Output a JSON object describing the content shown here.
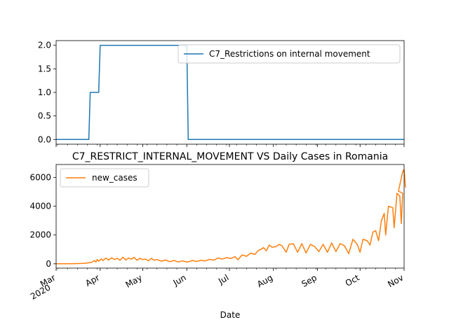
{
  "chart_data": [
    {
      "type": "line",
      "title": "",
      "xlabel": "",
      "ylabel": "",
      "ylim": [
        -0.1,
        2.1
      ],
      "yticks": [
        0.0,
        0.5,
        1.0,
        1.5,
        2.0
      ],
      "ytick_labels": [
        "0.0",
        "0.5",
        "1.0",
        "1.5",
        "2.0"
      ],
      "xlim": [
        "2020-03-01",
        "2020-11-01"
      ],
      "legend_position": "upper-right",
      "series": [
        {
          "name": "C7_Restrictions on internal movement",
          "color": "#1f77b4",
          "points": [
            [
              "2020-03-01",
              0
            ],
            [
              "2020-03-24",
              0
            ],
            [
              "2020-03-25",
              1
            ],
            [
              "2020-03-31",
              1
            ],
            [
              "2020-04-01",
              2
            ],
            [
              "2020-06-01",
              2
            ],
            [
              "2020-06-02",
              0
            ],
            [
              "2020-11-01",
              0
            ]
          ]
        }
      ]
    },
    {
      "type": "line",
      "title": "C7_RESTRICT_INTERNAL_MOVEMENT VS Daily Cases in Romania",
      "xlabel": "Date",
      "ylabel": "",
      "ylim": [
        -300,
        6900
      ],
      "yticks": [
        0,
        2000,
        4000,
        6000
      ],
      "ytick_labels": [
        "0",
        "2000",
        "4000",
        "6000"
      ],
      "xlim": [
        "2020-03-01",
        "2020-11-01"
      ],
      "legend_position": "upper-left",
      "x_tick_labels": [
        {
          "date": "2020-03-01",
          "month": "Mar",
          "year": "2020"
        },
        {
          "date": "2020-04-01",
          "month": "Apr"
        },
        {
          "date": "2020-05-01",
          "month": "May"
        },
        {
          "date": "2020-06-01",
          "month": "Jun"
        },
        {
          "date": "2020-07-01",
          "month": "Jul"
        },
        {
          "date": "2020-08-01",
          "month": "Aug"
        },
        {
          "date": "2020-09-01",
          "month": "Sep"
        },
        {
          "date": "2020-10-01",
          "month": "Oct"
        },
        {
          "date": "2020-11-01",
          "month": "Nov"
        }
      ],
      "series": [
        {
          "name": "new_cases",
          "color": "#ff7f0e",
          "points": [
            [
              "2020-03-01",
              0
            ],
            [
              "2020-03-10",
              5
            ],
            [
              "2020-03-16",
              15
            ],
            [
              "2020-03-20",
              30
            ],
            [
              "2020-03-23",
              60
            ],
            [
              "2020-03-26",
              100
            ],
            [
              "2020-03-28",
              230
            ],
            [
              "2020-03-29",
              120
            ],
            [
              "2020-03-30",
              300
            ],
            [
              "2020-03-31",
              180
            ],
            [
              "2020-04-02",
              340
            ],
            [
              "2020-04-03",
              220
            ],
            [
              "2020-04-05",
              400
            ],
            [
              "2020-04-07",
              260
            ],
            [
              "2020-04-09",
              420
            ],
            [
              "2020-04-11",
              300
            ],
            [
              "2020-04-13",
              380
            ],
            [
              "2020-04-15",
              240
            ],
            [
              "2020-04-17",
              460
            ],
            [
              "2020-04-19",
              260
            ],
            [
              "2020-04-21",
              400
            ],
            [
              "2020-04-23",
              320
            ],
            [
              "2020-04-25",
              450
            ],
            [
              "2020-04-27",
              240
            ],
            [
              "2020-04-29",
              380
            ],
            [
              "2020-05-01",
              300
            ],
            [
              "2020-05-03",
              330
            ],
            [
              "2020-05-05",
              200
            ],
            [
              "2020-05-07",
              380
            ],
            [
              "2020-05-09",
              250
            ],
            [
              "2020-05-11",
              300
            ],
            [
              "2020-05-14",
              180
            ],
            [
              "2020-05-17",
              260
            ],
            [
              "2020-05-20",
              150
            ],
            [
              "2020-05-23",
              230
            ],
            [
              "2020-05-26",
              130
            ],
            [
              "2020-05-29",
              200
            ],
            [
              "2020-06-01",
              120
            ],
            [
              "2020-06-03",
              160
            ],
            [
              "2020-06-05",
              230
            ],
            [
              "2020-06-08",
              160
            ],
            [
              "2020-06-11",
              240
            ],
            [
              "2020-06-14",
              200
            ],
            [
              "2020-06-17",
              310
            ],
            [
              "2020-06-20",
              250
            ],
            [
              "2020-06-23",
              400
            ],
            [
              "2020-06-26",
              330
            ],
            [
              "2020-06-29",
              430
            ],
            [
              "2020-07-02",
              360
            ],
            [
              "2020-07-05",
              500
            ],
            [
              "2020-07-07",
              280
            ],
            [
              "2020-07-10",
              620
            ],
            [
              "2020-07-13",
              520
            ],
            [
              "2020-07-16",
              740
            ],
            [
              "2020-07-19",
              650
            ],
            [
              "2020-07-21",
              900
            ],
            [
              "2020-07-23",
              1000
            ],
            [
              "2020-07-25",
              1120
            ],
            [
              "2020-07-27",
              900
            ],
            [
              "2020-07-29",
              1300
            ],
            [
              "2020-07-31",
              1150
            ],
            [
              "2020-08-03",
              1200
            ],
            [
              "2020-08-05",
              1350
            ],
            [
              "2020-08-07",
              1250
            ],
            [
              "2020-08-10",
              800
            ],
            [
              "2020-08-12",
              1350
            ],
            [
              "2020-08-15",
              1400
            ],
            [
              "2020-08-18",
              800
            ],
            [
              "2020-08-21",
              1400
            ],
            [
              "2020-08-24",
              750
            ],
            [
              "2020-08-27",
              1350
            ],
            [
              "2020-08-30",
              1200
            ],
            [
              "2020-09-02",
              850
            ],
            [
              "2020-09-05",
              1350
            ],
            [
              "2020-09-08",
              800
            ],
            [
              "2020-09-11",
              1450
            ],
            [
              "2020-09-14",
              850
            ],
            [
              "2020-09-17",
              1400
            ],
            [
              "2020-09-20",
              1250
            ],
            [
              "2020-09-23",
              700
            ],
            [
              "2020-09-26",
              1700
            ],
            [
              "2020-09-29",
              1350
            ],
            [
              "2020-10-01",
              800
            ],
            [
              "2020-10-03",
              1700
            ],
            [
              "2020-10-06",
              1600
            ],
            [
              "2020-10-08",
              1300
            ],
            [
              "2020-10-10",
              2200
            ],
            [
              "2020-10-12",
              2300
            ],
            [
              "2020-10-14",
              1600
            ],
            [
              "2020-10-16",
              3000
            ],
            [
              "2020-10-18",
              3500
            ],
            [
              "2020-10-19",
              2000
            ],
            [
              "2020-10-21",
              4000
            ],
            [
              "2020-10-24",
              3900
            ],
            [
              "2020-10-25",
              2500
            ],
            [
              "2020-10-27",
              4900
            ],
            [
              "2020-10-29",
              4700
            ],
            [
              "2020-10-30",
              2800
            ],
            [
              "2020-10-31",
              4900
            ],
            [
              "2020-11-01",
              5300
            ]
          ]
        }
      ],
      "extra_points": [
        [
          "2020-10-28",
          5050
        ],
        [
          "2020-10-31",
          6400
        ],
        [
          "2020-11-01",
          6550
        ],
        [
          "2020-11-02",
          5300
        ]
      ]
    }
  ]
}
